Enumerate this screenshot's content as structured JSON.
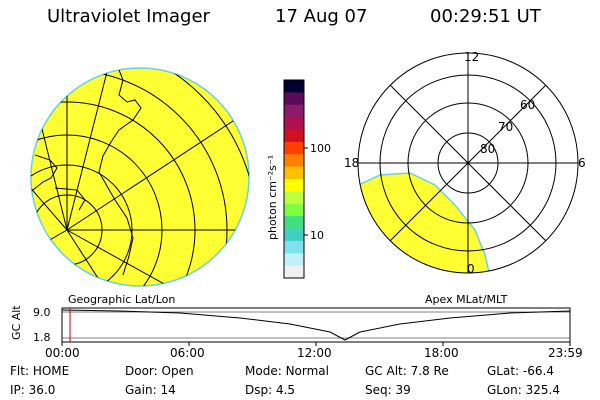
{
  "header": {
    "title": "Ultraviolet Imager",
    "date": "17 Aug 07",
    "time": "00:29:51 UT"
  },
  "colorbar": {
    "label": "photon cm⁻²s⁻¹",
    "ticks": [
      "100",
      "10"
    ],
    "colors": [
      "#000033",
      "#5a0a5a",
      "#8a1a6a",
      "#b01050",
      "#d01020",
      "#ff4000",
      "#ff8000",
      "#ffc000",
      "#ffff00",
      "#c0ff40",
      "#80ff40",
      "#40e080",
      "#40d0c0",
      "#80e0f0",
      "#c0f0f8",
      "#f0f0f0"
    ]
  },
  "map_left": {
    "caption": "Geographic Lat/Lon",
    "fill": "#ffff33"
  },
  "map_right": {
    "caption": "Apex MLat/MLT",
    "fill": "#ffff33",
    "lat_labels": [
      "80",
      "70",
      "60"
    ],
    "mlt_labels": [
      "12",
      "18",
      "6",
      "0"
    ]
  },
  "altitude_plot": {
    "ylabel": "GC Alt",
    "yticks": [
      "9.0",
      "1.8"
    ],
    "xticks": [
      "00:00",
      "06:00",
      "12:00",
      "18:00",
      "23:59"
    ]
  },
  "status": {
    "row1": [
      {
        "k": "Flt:",
        "v": "HOME"
      },
      {
        "k": "Door:",
        "v": "Open"
      },
      {
        "k": "Mode:",
        "v": "Normal"
      },
      {
        "k": "GC Alt:",
        "v": "7.8 Re"
      },
      {
        "k": "GLat:",
        "v": "-66.4"
      }
    ],
    "row2": [
      {
        "k": "IP:",
        "v": "36.0"
      },
      {
        "k": "Gain:",
        "v": "14"
      },
      {
        "k": "Dsp:",
        "v": "4.5"
      },
      {
        "k": "Seq:",
        "v": "39"
      },
      {
        "k": "GLon:",
        "v": "325.4"
      }
    ]
  }
}
